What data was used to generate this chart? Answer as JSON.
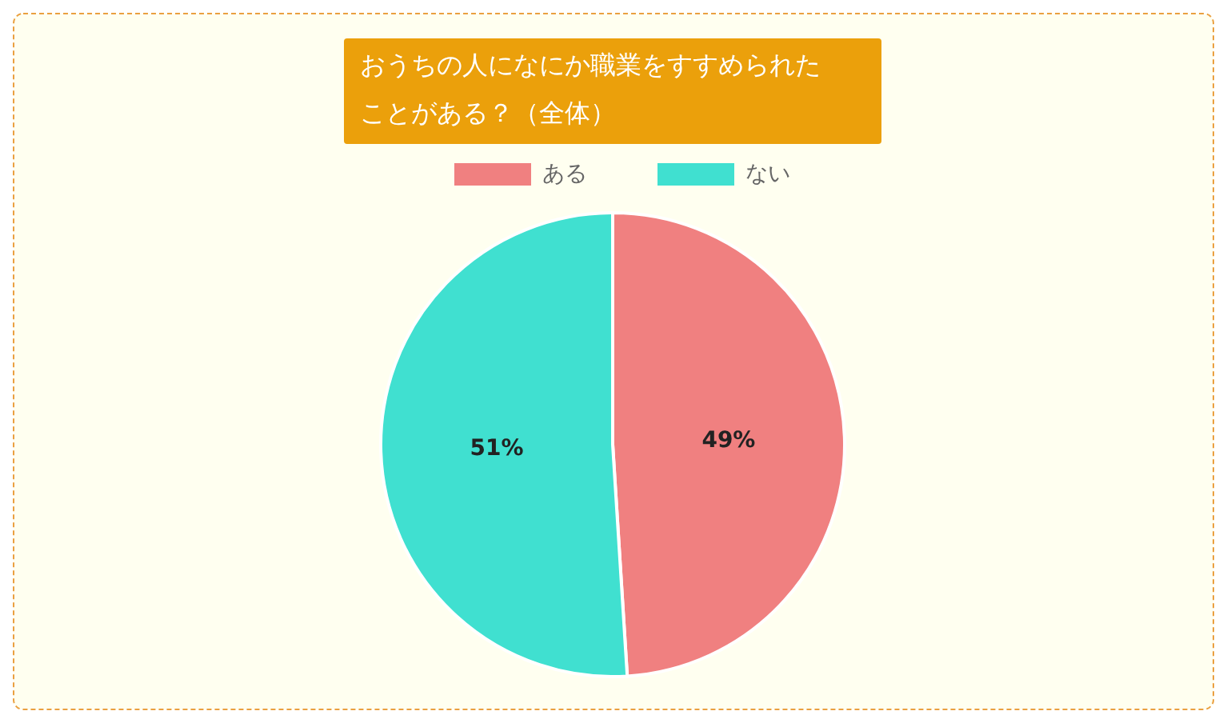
{
  "chart_data": {
    "type": "pie",
    "title": "おうちの人になにか職業をすすめられたことがある？（全体）",
    "categories": [
      "ある",
      "ない"
    ],
    "values": [
      49,
      51
    ],
    "colors": [
      "#f08080",
      "#40e0d0"
    ],
    "value_labels": [
      "49%",
      "51%"
    ],
    "legend": "top"
  }
}
